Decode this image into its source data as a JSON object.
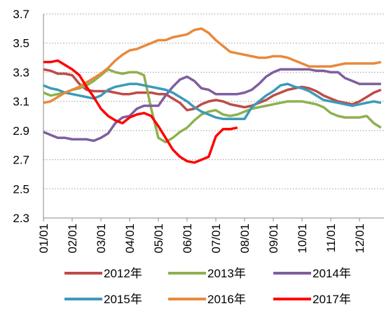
{
  "chart_data": {
    "type": "line",
    "categories": [
      "01/01",
      null,
      null,
      null,
      "02/01",
      null,
      null,
      null,
      "03/01",
      null,
      null,
      null,
      "04/01",
      null,
      null,
      null,
      "05/01",
      null,
      null,
      null,
      "06/01",
      null,
      null,
      null,
      "07/01",
      null,
      null,
      null,
      "08/01",
      null,
      null,
      null,
      "09/01",
      null,
      null,
      null,
      "10/01",
      null,
      null,
      null,
      "11/01",
      null,
      null,
      null,
      "12/01",
      null,
      null,
      null
    ],
    "series": [
      {
        "name": "2012年",
        "color": "#be4b48",
        "values": [
          3.32,
          3.31,
          3.29,
          3.29,
          3.28,
          3.22,
          3.18,
          3.17,
          3.17,
          3.17,
          3.16,
          3.15,
          3.15,
          3.16,
          3.16,
          3.16,
          3.15,
          3.15,
          3.12,
          3.09,
          3.04,
          3.05,
          3.08,
          3.1,
          3.11,
          3.1,
          3.08,
          3.07,
          3.06,
          3.07,
          3.09,
          3.11,
          3.14,
          3.16,
          3.18,
          3.19,
          3.2,
          3.19,
          3.17,
          3.14,
          3.12,
          3.1,
          3.09,
          3.08,
          3.1,
          3.13,
          3.16,
          3.18
        ]
      },
      {
        "name": "2013年",
        "color": "#8fb04f",
        "values": [
          3.16,
          3.14,
          3.15,
          3.16,
          3.18,
          3.19,
          3.21,
          3.24,
          3.28,
          3.32,
          3.3,
          3.29,
          3.3,
          3.3,
          3.28,
          3.05,
          2.85,
          2.82,
          2.85,
          2.89,
          2.92,
          2.97,
          3.01,
          3.03,
          3.04,
          3.01,
          3.0,
          3.01,
          3.03,
          3.05,
          3.06,
          3.07,
          3.08,
          3.09,
          3.1,
          3.1,
          3.1,
          3.09,
          3.08,
          3.06,
          3.02,
          3.0,
          2.99,
          2.99,
          2.99,
          3.0,
          2.95,
          2.92
        ]
      },
      {
        "name": "2014年",
        "color": "#7e5f9e",
        "values": [
          2.89,
          2.87,
          2.85,
          2.85,
          2.84,
          2.84,
          2.84,
          2.83,
          2.85,
          2.88,
          2.95,
          2.99,
          3.0,
          3.05,
          3.07,
          3.07,
          3.07,
          3.14,
          3.2,
          3.25,
          3.27,
          3.24,
          3.19,
          3.18,
          3.15,
          3.15,
          3.15,
          3.15,
          3.16,
          3.18,
          3.22,
          3.27,
          3.3,
          3.32,
          3.32,
          3.32,
          3.32,
          3.32,
          3.31,
          3.31,
          3.3,
          3.3,
          3.26,
          3.24,
          3.22,
          3.22,
          3.22,
          3.22
        ]
      },
      {
        "name": "2015年",
        "color": "#3b9bb8",
        "values": [
          3.21,
          3.19,
          3.18,
          3.16,
          3.15,
          3.14,
          3.13,
          3.12,
          3.14,
          3.18,
          3.2,
          3.21,
          3.22,
          3.22,
          3.21,
          3.2,
          3.19,
          3.18,
          3.16,
          3.13,
          3.1,
          3.06,
          3.03,
          3.01,
          2.99,
          2.98,
          2.98,
          2.98,
          2.98,
          3.06,
          3.1,
          3.14,
          3.17,
          3.21,
          3.22,
          3.2,
          3.19,
          3.17,
          3.14,
          3.11,
          3.1,
          3.09,
          3.08,
          3.07,
          3.08,
          3.09,
          3.1,
          3.09
        ]
      },
      {
        "name": "2016年",
        "color": "#e8893b",
        "values": [
          3.09,
          3.1,
          3.13,
          3.16,
          3.18,
          3.2,
          3.23,
          3.26,
          3.29,
          3.33,
          3.38,
          3.42,
          3.45,
          3.46,
          3.48,
          3.5,
          3.52,
          3.52,
          3.54,
          3.55,
          3.56,
          3.59,
          3.6,
          3.57,
          3.52,
          3.48,
          3.44,
          3.43,
          3.42,
          3.41,
          3.4,
          3.4,
          3.41,
          3.41,
          3.4,
          3.38,
          3.36,
          3.34,
          3.34,
          3.34,
          3.34,
          3.35,
          3.36,
          3.36,
          3.36,
          3.36,
          3.36,
          3.37
        ]
      },
      {
        "name": "2017年",
        "color": "#ff0000",
        "values": [
          3.37,
          3.37,
          3.38,
          3.35,
          3.32,
          3.28,
          3.2,
          3.13,
          3.05,
          3.0,
          2.97,
          2.95,
          2.99,
          3.01,
          3.02,
          3.0,
          2.93,
          2.85,
          2.77,
          2.72,
          2.69,
          2.68,
          2.7,
          2.72,
          2.86,
          2.91,
          2.91,
          2.92,
          null,
          null,
          null,
          null,
          null,
          null,
          null,
          null,
          null,
          null,
          null,
          null,
          null,
          null,
          null,
          null,
          null,
          null,
          null,
          null
        ]
      }
    ],
    "ylim": [
      2.3,
      3.7
    ],
    "yticks": [
      2.3,
      2.5,
      2.7,
      2.9,
      3.1,
      3.3,
      3.5,
      3.7
    ],
    "grid": true,
    "legend": "bottom"
  }
}
